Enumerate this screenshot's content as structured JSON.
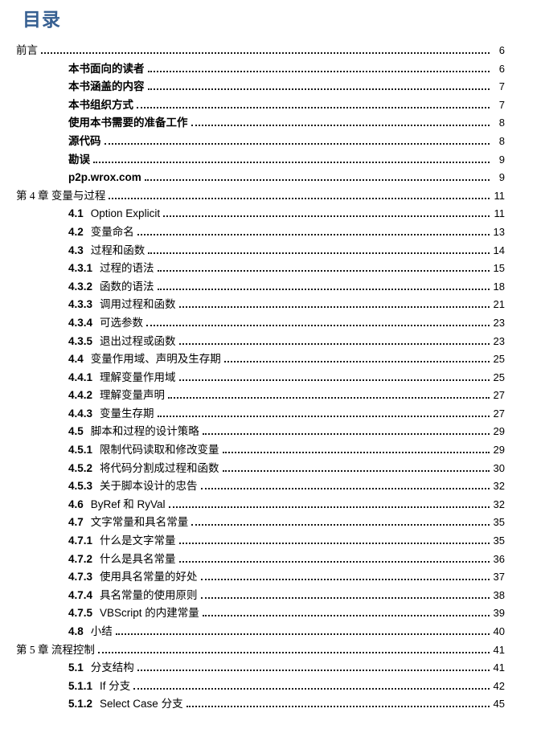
{
  "doc": {
    "title": "目录",
    "heading_color": "#365F91",
    "text_color": "#000000",
    "background_color": "#ffffff"
  },
  "toc": {
    "entries": [
      {
        "style": "chapter",
        "indent": 0,
        "num": "",
        "text": "前言",
        "page": "6"
      },
      {
        "style": "boldrow",
        "indent": 1,
        "num": "",
        "text": "本书面向的读者",
        "page": "6"
      },
      {
        "style": "boldrow",
        "indent": 1,
        "num": "",
        "text": "本书涵盖的内容",
        "page": "7"
      },
      {
        "style": "boldrow",
        "indent": 1,
        "num": "",
        "text": "本书组织方式",
        "page": "7"
      },
      {
        "style": "boldrow",
        "indent": 1,
        "num": "",
        "text": "使用本书需要的准备工作",
        "page": "8"
      },
      {
        "style": "boldrow",
        "indent": 1,
        "num": "",
        "text": "源代码",
        "page": "8"
      },
      {
        "style": "boldrow",
        "indent": 1,
        "num": "",
        "text": "勘误",
        "page": "9"
      },
      {
        "style": "boldrow",
        "indent": 1,
        "num": "",
        "text": "p2p.wrox.com",
        "page": "9"
      },
      {
        "style": "chapter",
        "indent": 0,
        "num": "",
        "text": "第 4 章 变量与过程",
        "page": "11"
      },
      {
        "style": "numbered",
        "indent": 1,
        "num": "4.1",
        "text": "Option Explicit",
        "page": "11"
      },
      {
        "style": "numbered",
        "indent": 1,
        "num": "4.2",
        "text": "变量命名",
        "page": "13"
      },
      {
        "style": "numbered",
        "indent": 1,
        "num": "4.3",
        "text": "过程和函数",
        "page": "14"
      },
      {
        "style": "numbered",
        "indent": 1,
        "num": "4.3.1",
        "text": "过程的语法",
        "page": "15"
      },
      {
        "style": "numbered",
        "indent": 1,
        "num": "4.3.2",
        "text": "函数的语法",
        "page": "18"
      },
      {
        "style": "numbered",
        "indent": 1,
        "num": "4.3.3",
        "text": "调用过程和函数",
        "page": "21"
      },
      {
        "style": "numbered",
        "indent": 1,
        "num": "4.3.4",
        "text": "可选参数",
        "page": "23"
      },
      {
        "style": "numbered",
        "indent": 1,
        "num": "4.3.5",
        "text": "退出过程或函数",
        "page": "23"
      },
      {
        "style": "numbered",
        "indent": 1,
        "num": "4.4",
        "text": "变量作用域、声明及生存期",
        "page": "25"
      },
      {
        "style": "numbered",
        "indent": 1,
        "num": "4.4.1",
        "text": "理解变量作用域",
        "page": "25"
      },
      {
        "style": "numbered",
        "indent": 1,
        "num": "4.4.2",
        "text": "理解变量声明",
        "page": "27"
      },
      {
        "style": "numbered",
        "indent": 1,
        "num": "4.4.3",
        "text": "变量生存期",
        "page": "27"
      },
      {
        "style": "numbered",
        "indent": 1,
        "num": "4.5",
        "text": "脚本和过程的设计策略",
        "page": "29"
      },
      {
        "style": "numbered",
        "indent": 1,
        "num": "4.5.1",
        "text": "限制代码读取和修改变量",
        "page": "29"
      },
      {
        "style": "numbered",
        "indent": 1,
        "num": "4.5.2",
        "text": "将代码分割成过程和函数",
        "page": "30"
      },
      {
        "style": "numbered",
        "indent": 1,
        "num": "4.5.3",
        "text": "关于脚本设计的忠告",
        "page": "32"
      },
      {
        "style": "numbered",
        "indent": 1,
        "num": "4.6",
        "text": "ByRef 和 RyVal",
        "page": "32"
      },
      {
        "style": "numbered",
        "indent": 1,
        "num": "4.7",
        "text": "文字常量和具名常量",
        "page": "35"
      },
      {
        "style": "numbered",
        "indent": 1,
        "num": "4.7.1",
        "text": "什么是文字常量",
        "page": "35"
      },
      {
        "style": "numbered",
        "indent": 1,
        "num": "4.7.2",
        "text": "什么是具名常量",
        "page": "36"
      },
      {
        "style": "numbered",
        "indent": 1,
        "num": "4.7.3",
        "text": "使用具名常量的好处",
        "page": "37"
      },
      {
        "style": "numbered",
        "indent": 1,
        "num": "4.7.4",
        "text": "具名常量的使用原则",
        "page": "38"
      },
      {
        "style": "numbered",
        "indent": 1,
        "num": "4.7.5",
        "text": "VBScript 的内建常量",
        "page": "39"
      },
      {
        "style": "numbered",
        "indent": 1,
        "num": "4.8",
        "text": "小结",
        "page": "40"
      },
      {
        "style": "chapter",
        "indent": 0,
        "num": "",
        "text": "第 5 章 流程控制",
        "page": "41"
      },
      {
        "style": "numbered",
        "indent": 1,
        "num": "5.1",
        "text": "分支结构",
        "page": "41"
      },
      {
        "style": "numbered",
        "indent": 1,
        "num": "5.1.1",
        "text": "If 分支",
        "page": "42"
      },
      {
        "style": "numbered",
        "indent": 1,
        "num": "5.1.2",
        "text": "Select Case 分支",
        "page": "45"
      }
    ]
  }
}
